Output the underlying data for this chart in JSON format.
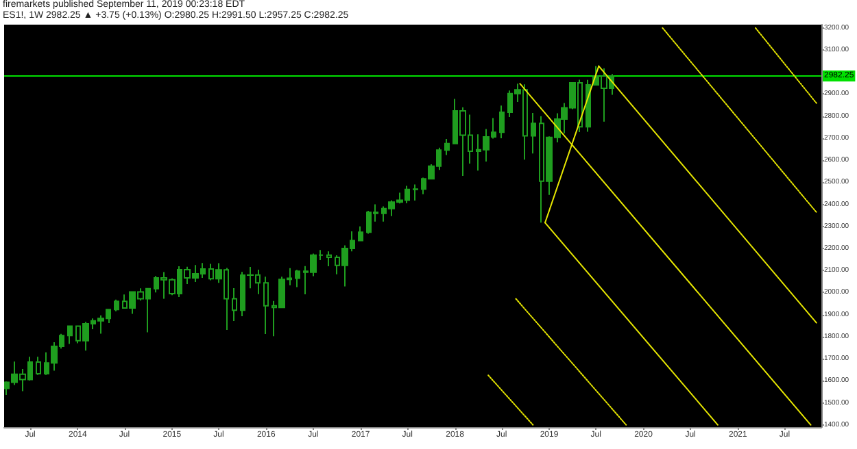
{
  "chart_data": {
    "type": "candlestick",
    "title": "firemarkets published September 11, 2019 00:23:18 EDT",
    "subtitle": "ES1!, 1W 2982.25 ▲ +3.75 (+0.13%) O:2980.25 H:2991.50 L:2957.25 C:2982.25",
    "color": "#1f9e1f",
    "x": [
      "2013-04",
      "2013-05",
      "2013-06",
      "2013-07",
      "2013-08",
      "2013-09",
      "2013-10",
      "2013-11",
      "2013-12",
      "2014-01",
      "2014-02",
      "2014-03",
      "2014-04",
      "2014-05",
      "2014-06",
      "2014-07",
      "2014-08",
      "2014-09",
      "2014-10",
      "2014-11",
      "2014-12",
      "2015-01",
      "2015-02",
      "2015-03",
      "2015-04",
      "2015-05",
      "2015-06",
      "2015-07",
      "2015-08",
      "2015-09",
      "2015-10",
      "2015-11",
      "2015-12",
      "2016-01",
      "2016-02",
      "2016-03",
      "2016-04",
      "2016-05",
      "2016-06",
      "2016-07",
      "2016-08",
      "2016-09",
      "2016-10",
      "2016-11",
      "2016-12",
      "2017-01",
      "2017-02",
      "2017-03",
      "2017-04",
      "2017-05",
      "2017-06",
      "2017-07",
      "2017-08",
      "2017-09",
      "2017-10",
      "2017-11",
      "2017-12",
      "2018-01",
      "2018-02",
      "2018-03",
      "2018-04",
      "2018-05",
      "2018-06",
      "2018-07",
      "2018-08",
      "2018-09",
      "2018-10",
      "2018-11",
      "2018-12",
      "2019-01",
      "2019-02",
      "2019-03",
      "2019-04",
      "2019-05",
      "2019-06",
      "2019-07",
      "2019-08",
      "2019-09"
    ],
    "ohlc": [
      [
        1565,
        1597,
        1536,
        1593
      ],
      [
        1593,
        1687,
        1581,
        1630
      ],
      [
        1630,
        1654,
        1553,
        1606
      ],
      [
        1606,
        1709,
        1601,
        1685
      ],
      [
        1685,
        1709,
        1627,
        1632
      ],
      [
        1632,
        1729,
        1627,
        1681
      ],
      [
        1681,
        1775,
        1646,
        1756
      ],
      [
        1756,
        1813,
        1746,
        1805
      ],
      [
        1805,
        1849,
        1767,
        1848
      ],
      [
        1848,
        1850,
        1770,
        1782
      ],
      [
        1782,
        1867,
        1737,
        1859
      ],
      [
        1859,
        1883,
        1834,
        1872
      ],
      [
        1872,
        1897,
        1814,
        1883
      ],
      [
        1883,
        1924,
        1862,
        1923
      ],
      [
        1923,
        1968,
        1915,
        1960
      ],
      [
        1960,
        1991,
        1930,
        1930
      ],
      [
        1930,
        2005,
        1904,
        2003
      ],
      [
        2003,
        2019,
        1964,
        1972
      ],
      [
        1972,
        2018,
        1820,
        2018
      ],
      [
        2018,
        2075,
        2001,
        2067
      ],
      [
        2067,
        2093,
        1972,
        2058
      ],
      [
        2058,
        2064,
        1988,
        1995
      ],
      [
        1995,
        2119,
        1980,
        2104
      ],
      [
        2104,
        2117,
        2039,
        2067
      ],
      [
        2067,
        2125,
        2048,
        2085
      ],
      [
        2085,
        2134,
        2067,
        2107
      ],
      [
        2107,
        2130,
        2056,
        2063
      ],
      [
        2063,
        2133,
        2044,
        2103
      ],
      [
        2103,
        2112,
        1831,
        1972
      ],
      [
        1972,
        2020,
        1871,
        1920
      ],
      [
        1920,
        2094,
        1893,
        2079
      ],
      [
        2079,
        2116,
        2019,
        2080
      ],
      [
        2080,
        2104,
        1993,
        2044
      ],
      [
        2044,
        2072,
        1812,
        1940
      ],
      [
        1940,
        1962,
        1802,
        1932
      ],
      [
        1932,
        2072,
        1931,
        2060
      ],
      [
        2060,
        2111,
        2033,
        2065
      ],
      [
        2065,
        2103,
        2025,
        2097
      ],
      [
        2097,
        2120,
        1992,
        2092
      ],
      [
        2092,
        2177,
        2074,
        2170
      ],
      [
        2170,
        2193,
        2147,
        2170
      ],
      [
        2170,
        2187,
        2119,
        2160
      ],
      [
        2160,
        2169,
        2083,
        2123
      ],
      [
        2123,
        2214,
        2028,
        2200
      ],
      [
        2200,
        2278,
        2187,
        2236
      ],
      [
        2236,
        2300,
        2233,
        2274
      ],
      [
        2274,
        2371,
        2267,
        2364
      ],
      [
        2364,
        2400,
        2322,
        2359
      ],
      [
        2359,
        2391,
        2322,
        2381
      ],
      [
        2381,
        2418,
        2347,
        2410
      ],
      [
        2410,
        2453,
        2404,
        2419
      ],
      [
        2419,
        2484,
        2405,
        2468
      ],
      [
        2468,
        2490,
        2417,
        2469
      ],
      [
        2469,
        2521,
        2446,
        2516
      ],
      [
        2516,
        2582,
        2513,
        2573
      ],
      [
        2573,
        2657,
        2556,
        2646
      ],
      [
        2646,
        2697,
        2624,
        2676
      ],
      [
        2676,
        2878,
        2676,
        2824
      ],
      [
        2824,
        2840,
        2529,
        2714
      ],
      [
        2714,
        2807,
        2585,
        2641
      ],
      [
        2641,
        2718,
        2553,
        2648
      ],
      [
        2648,
        2742,
        2594,
        2706
      ],
      [
        2706,
        2791,
        2698,
        2727
      ],
      [
        2727,
        2848,
        2700,
        2818
      ],
      [
        2818,
        2916,
        2796,
        2902
      ],
      [
        2902,
        2947,
        2864,
        2919
      ],
      [
        2919,
        2944,
        2603,
        2711
      ],
      [
        2711,
        2815,
        2631,
        2767
      ],
      [
        2767,
        2800,
        2317,
        2505
      ],
      [
        2505,
        2708,
        2443,
        2704
      ],
      [
        2704,
        2813,
        2681,
        2787
      ],
      [
        2787,
        2860,
        2722,
        2838
      ],
      [
        2838,
        2954,
        2832,
        2951
      ],
      [
        2951,
        2965,
        2728,
        2752
      ],
      [
        2752,
        2964,
        2729,
        2942
      ],
      [
        2942,
        3027,
        2939,
        2982
      ],
      [
        2982,
        3017,
        2775,
        2926
      ],
      [
        2926,
        2991,
        2897,
        2982
      ]
    ],
    "series": [
      {
        "type": "line",
        "color": "#e6e600",
        "line_style": "solid",
        "x": [
          "2018-09-10",
          "2021-10-10"
        ],
        "values": [
          2947,
          1400
        ]
      },
      {
        "type": "line",
        "color": "#e6e600",
        "line_style": "solid",
        "x": [
          "2018-12-16",
          "2020-10-15"
        ],
        "values": [
          2317,
          1400
        ]
      },
      {
        "type": "line",
        "color": "#e6e600",
        "line_style": "solid",
        "x": [
          "2019-07-12",
          "2021-11-01"
        ],
        "values": [
          3027,
          1863
        ]
      },
      {
        "type": "line",
        "color": "#e6e600",
        "line_style": "solid",
        "x": [
          "2018-12-16",
          "2019-07-12"
        ],
        "values": [
          2317,
          3027
        ]
      },
      {
        "type": "line",
        "color": "#e6e600",
        "line_style": "dotted",
        "x": [
          "2021-03-10",
          "2021-11-01"
        ],
        "values": [
          3200,
          2859
        ]
      },
      {
        "type": "line",
        "color": "#e6e600",
        "line_style": "dotted",
        "x": [
          "2020-03-15",
          "2021-11-01"
        ],
        "values": [
          3200,
          2364
        ]
      },
      {
        "type": "line",
        "color": "#e6e600",
        "line_style": "dotted",
        "x": [
          "2018-08-25",
          "2019-10-26"
        ],
        "values": [
          1972,
          1400
        ]
      },
      {
        "type": "line",
        "color": "#e6e600",
        "line_style": "dotted",
        "x": [
          "2018-05-10",
          "2018-10-30"
        ],
        "values": [
          1625,
          1400
        ]
      }
    ],
    "ref_lines": [
      {
        "axis": "y",
        "value": 2982.25,
        "label": "2982.25",
        "color": "#00e000"
      }
    ],
    "xlim": [
      "2013-03-22",
      "2021-11-20"
    ],
    "xticks": [
      {
        "value": "2013-07-01",
        "label": "Jul"
      },
      {
        "value": "2014-01-01",
        "label": "2014"
      },
      {
        "value": "2014-07-01",
        "label": "Jul"
      },
      {
        "value": "2015-01-01",
        "label": "2015"
      },
      {
        "value": "2015-07-01",
        "label": "Jul"
      },
      {
        "value": "2016-01-01",
        "label": "2016"
      },
      {
        "value": "2016-07-01",
        "label": "Jul"
      },
      {
        "value": "2017-01-01",
        "label": "2017"
      },
      {
        "value": "2017-07-01",
        "label": "Jul"
      },
      {
        "value": "2018-01-01",
        "label": "2018"
      },
      {
        "value": "2018-07-01",
        "label": "Jul"
      },
      {
        "value": "2019-01-01",
        "label": "2019"
      },
      {
        "value": "2019-07-01",
        "label": "Jul"
      },
      {
        "value": "2020-01-01",
        "label": "2020"
      },
      {
        "value": "2020-07-01",
        "label": "Jul"
      },
      {
        "value": "2021-01-01",
        "label": "2021"
      },
      {
        "value": "2021-07-01",
        "label": "Jul"
      }
    ],
    "ylim": [
      1390,
      3215
    ],
    "yticks": [
      {
        "value": 1400,
        "label": "1400.00"
      },
      {
        "value": 1500,
        "label": "1500.00"
      },
      {
        "value": 1600,
        "label": "1600.00"
      },
      {
        "value": 1700,
        "label": "1700.00"
      },
      {
        "value": 1800,
        "label": "1800.00"
      },
      {
        "value": 1900,
        "label": "1900.00"
      },
      {
        "value": 2000,
        "label": "2000.00"
      },
      {
        "value": 2100,
        "label": "2100.00"
      },
      {
        "value": 2200,
        "label": "2200.00"
      },
      {
        "value": 2300,
        "label": "2300.00"
      },
      {
        "value": 2400,
        "label": "2400.00"
      },
      {
        "value": 2500,
        "label": "2500.00"
      },
      {
        "value": 2600,
        "label": "2600.00"
      },
      {
        "value": 2700,
        "label": "2700.00"
      },
      {
        "value": 2800,
        "label": "2800.00"
      },
      {
        "value": 2900,
        "label": "2900.00"
      },
      {
        "value": 3000,
        "label": null
      },
      {
        "value": 3100,
        "label": "3100.00"
      },
      {
        "value": 3200,
        "label": "3200.00"
      }
    ]
  }
}
